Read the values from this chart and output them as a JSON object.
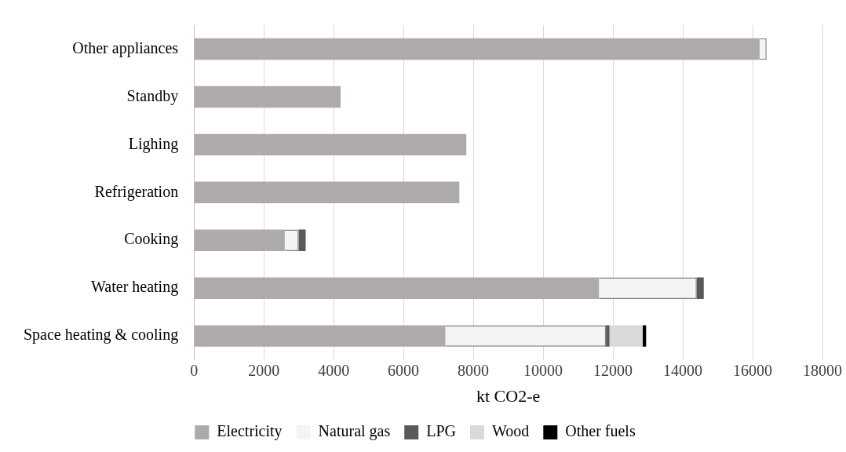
{
  "chart_data": {
    "type": "bar",
    "orientation": "horizontal",
    "stacked": true,
    "xlabel": "kt CO2-e",
    "categories": [
      "Other appliances",
      "Standby",
      "Lighing",
      "Refrigeration",
      "Cooking",
      "Water heating",
      "Space heating & cooling"
    ],
    "series": [
      {
        "name": "Electricity",
        "color": "#aeaaaa",
        "values": [
          16200,
          4200,
          7800,
          7600,
          2600,
          11600,
          7200
        ]
      },
      {
        "name": "Natural gas",
        "color": "#f4f4f4",
        "values": [
          200,
          null,
          null,
          null,
          400,
          2800,
          4600
        ]
      },
      {
        "name": "LPG",
        "color": "#595959",
        "values": [
          null,
          null,
          null,
          null,
          200,
          200,
          100
        ]
      },
      {
        "name": "Wood",
        "color": "#d9d9d9",
        "values": [
          null,
          null,
          null,
          null,
          null,
          null,
          950
        ]
      },
      {
        "name": "Other fuels",
        "color": "#000000",
        "values": [
          null,
          null,
          null,
          null,
          null,
          null,
          100
        ]
      }
    ],
    "xlim": [
      0,
      18000
    ],
    "xticks": [
      0,
      2000,
      4000,
      6000,
      8000,
      10000,
      12000,
      14000,
      16000,
      18000
    ],
    "grid": "x",
    "legend": "bottom"
  }
}
